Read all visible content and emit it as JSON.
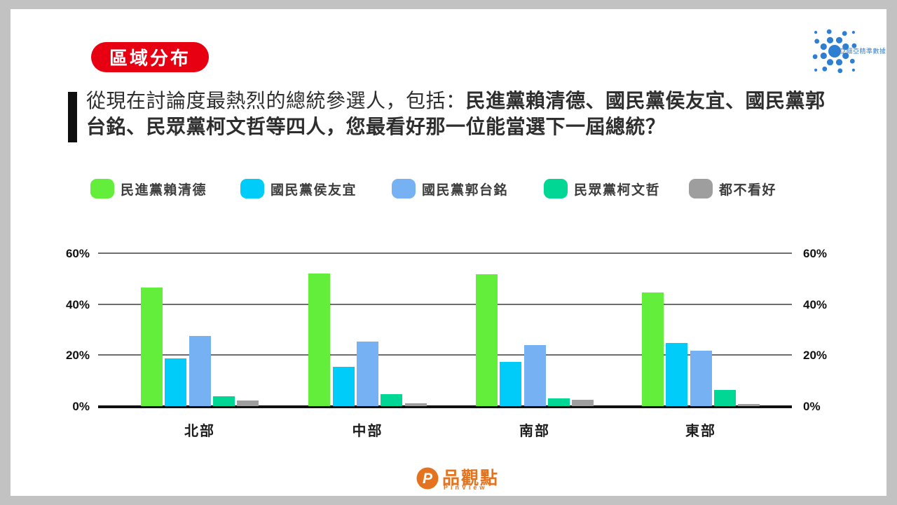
{
  "header": {
    "badge": "區域分布",
    "corner_logo_text": "亞細亞精準數據"
  },
  "question": {
    "prefix": "從現在討論度最熱烈的總統參選人，包括：",
    "emphasis": "民進黨賴清德、國民黨侯友宜、國民黨郭台銘、民眾黨柯文哲等四人，您最看好那一位能當選下一屆總統？"
  },
  "chart_data": {
    "type": "bar",
    "title": "區域分布",
    "categories": [
      "北部",
      "中部",
      "南部",
      "東部"
    ],
    "series": [
      {
        "name": "民進黨賴清德",
        "color": "#62ee3a",
        "values": [
          46.5,
          52.0,
          51.8,
          44.5
        ]
      },
      {
        "name": "國民黨侯友宜",
        "color": "#00ccf9",
        "values": [
          18.6,
          15.4,
          17.4,
          24.7
        ]
      },
      {
        "name": "國民黨郭台銘",
        "color": "#75b1f3",
        "values": [
          27.5,
          25.4,
          23.9,
          21.8
        ]
      },
      {
        "name": "民眾黨柯文哲",
        "color": "#00d795",
        "values": [
          3.9,
          4.8,
          3.1,
          6.4
        ]
      },
      {
        "name": "都不看好",
        "color": "#9e9e9e",
        "values": [
          2.3,
          1.2,
          2.4,
          0.9
        ]
      }
    ],
    "y_ticks": [
      "60%",
      "40%",
      "20%",
      "0%"
    ],
    "y_tick_values": [
      60,
      40,
      20,
      0
    ],
    "ylim": [
      0,
      60
    ],
    "grid": true,
    "legend_position": "top",
    "xlabel": "",
    "ylabel": ""
  },
  "footer": {
    "brand_name": "品觀點",
    "brand_sub": "PinView"
  },
  "colors": {
    "badge_bg": "#e60012",
    "brand_orange": "#e4731f",
    "corner_logo_blue": "#2e7fd2"
  }
}
